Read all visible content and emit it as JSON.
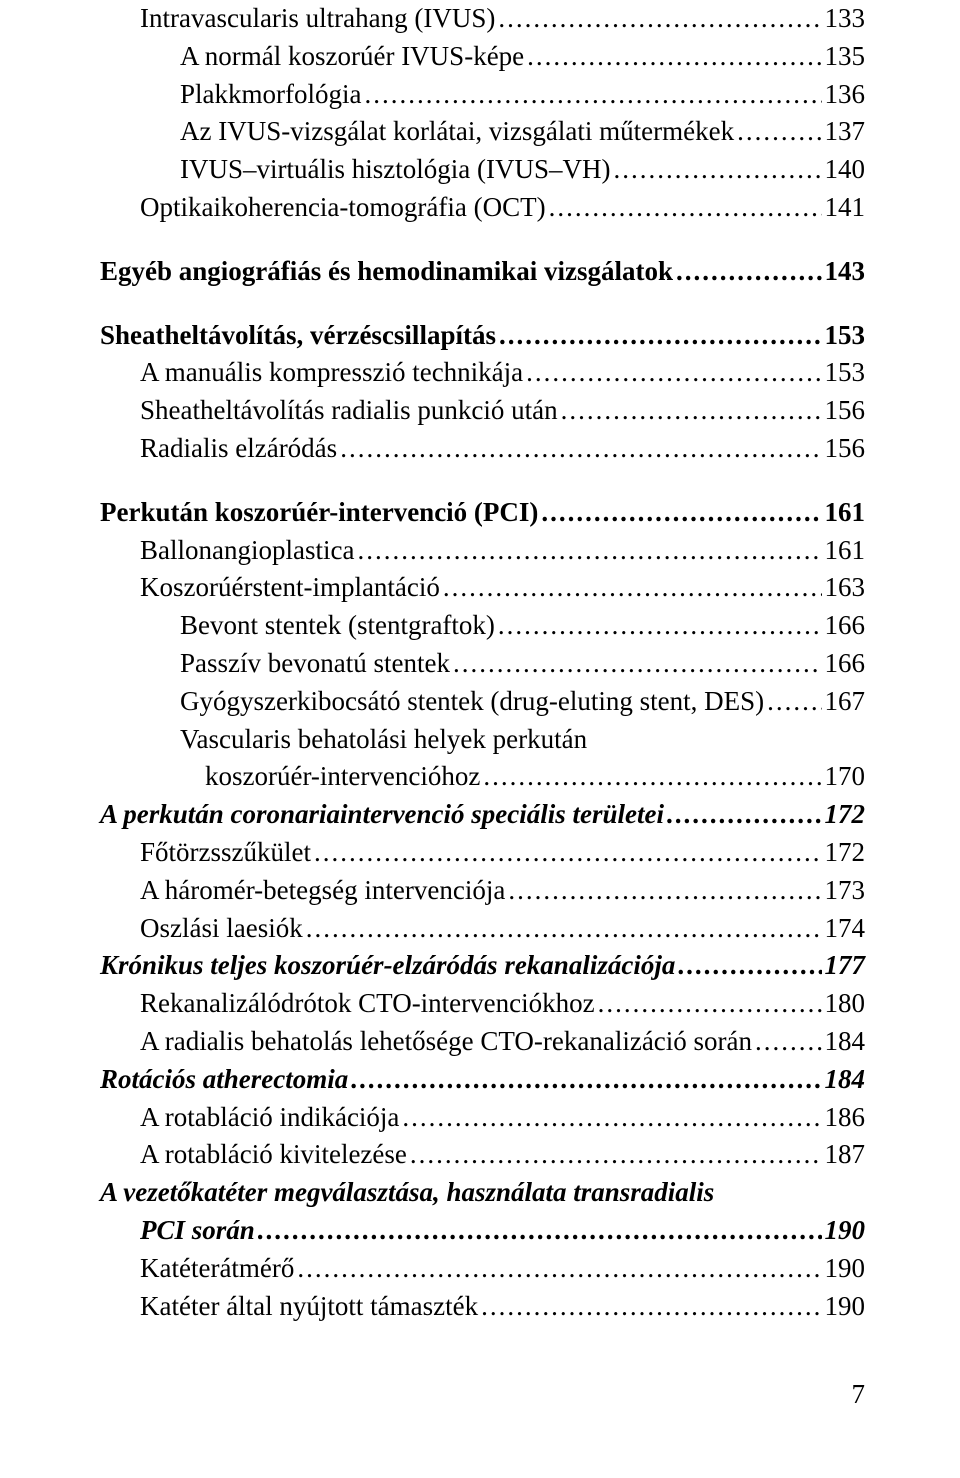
{
  "page_number": "7",
  "entries": [
    {
      "class": "level2",
      "label": "Intravascularis ultrahang (IVUS)",
      "page": "133"
    },
    {
      "class": "level3",
      "label": "A normál koszorúér IVUS-képe",
      "page": "135"
    },
    {
      "class": "level3",
      "label": "Plakkmorfológia",
      "page": "136"
    },
    {
      "class": "level3",
      "label": "Az IVUS-vizsgálat korlátai, vizsgálati műtermékek",
      "page": "137"
    },
    {
      "class": "level3",
      "label": "IVUS–virtuális hisztológia (IVUS–VH)",
      "page": "140"
    },
    {
      "class": "level2",
      "label": "Optikaikoherencia-tomográfia (OCT)",
      "page": "141"
    },
    {
      "class": "gap"
    },
    {
      "class": "level1",
      "label": "Egyéb angiográfiás és hemodinamikai vizsgálatok",
      "page": "143"
    },
    {
      "class": "gap"
    },
    {
      "class": "level1",
      "label": "Sheatheltávolítás, vérzéscsillapítás",
      "page": "153"
    },
    {
      "class": "level2",
      "label": "A manuális kompresszió technikája",
      "page": "153"
    },
    {
      "class": "level2",
      "label": "Sheatheltávolítás radialis punkció után",
      "page": "156"
    },
    {
      "class": "level2",
      "label": "Radialis elzáródás",
      "page": "156"
    },
    {
      "class": "gap"
    },
    {
      "class": "level1",
      "label": "Perkután koszorúér-intervenció (PCI)",
      "page": "161"
    },
    {
      "class": "level2",
      "label": "Ballonangioplastica",
      "page": "161"
    },
    {
      "class": "level2",
      "label": "Koszorúérstent-implantáció",
      "page": "163"
    },
    {
      "class": "level3",
      "label": "Bevont stentek (stentgraftok)",
      "page": "166"
    },
    {
      "class": "level3",
      "label": "Passzív bevonatú stentek",
      "page": "166"
    },
    {
      "class": "level3",
      "label": "Gyógyszerkibocsátó stentek (drug-eluting stent, DES)",
      "page": "167"
    },
    {
      "class": "level3",
      "labelLine1": "Vascularis behatolási helyek perkután",
      "contClass": "cont2",
      "label": "koszorúér-intervencióhoz",
      "page": "170"
    },
    {
      "class": "level1i",
      "label": "A perkután coronariaintervenció speciális területei",
      "page": "172"
    },
    {
      "class": "level2",
      "label": "Főtörzsszűkület",
      "page": "172"
    },
    {
      "class": "level2",
      "label": "A háromér-betegség intervenciója",
      "page": "173"
    },
    {
      "class": "level2",
      "label": "Oszlási laesiók",
      "page": "174"
    },
    {
      "class": "level1i",
      "label": "Krónikus teljes koszorúér-elzáródás rekanalizációja",
      "page": "177"
    },
    {
      "class": "level2",
      "label": "Rekanalizálódrótok CTO-intervenciókhoz",
      "page": "180"
    },
    {
      "class": "level2",
      "label": "A radialis behatolás lehetősége CTO-rekanalizáció során",
      "page": "184"
    },
    {
      "class": "level1i",
      "label": "Rotációs atherectomia",
      "page": "184"
    },
    {
      "class": "level2",
      "label": "A rotabláció indikációja",
      "page": "186"
    },
    {
      "class": "level2",
      "label": "A rotabláció kivitelezése",
      "page": "187"
    },
    {
      "class": "level1i",
      "labelLine1": "A vezetőkatéter megválasztása, használata transradialis",
      "contClass": "cont1i",
      "label": "PCI során",
      "page": "190"
    },
    {
      "class": "level2",
      "label": "Katéterátmérő",
      "page": "190"
    },
    {
      "class": "level2",
      "label": "Katéter által nyújtott támaszték",
      "page": "190"
    }
  ]
}
